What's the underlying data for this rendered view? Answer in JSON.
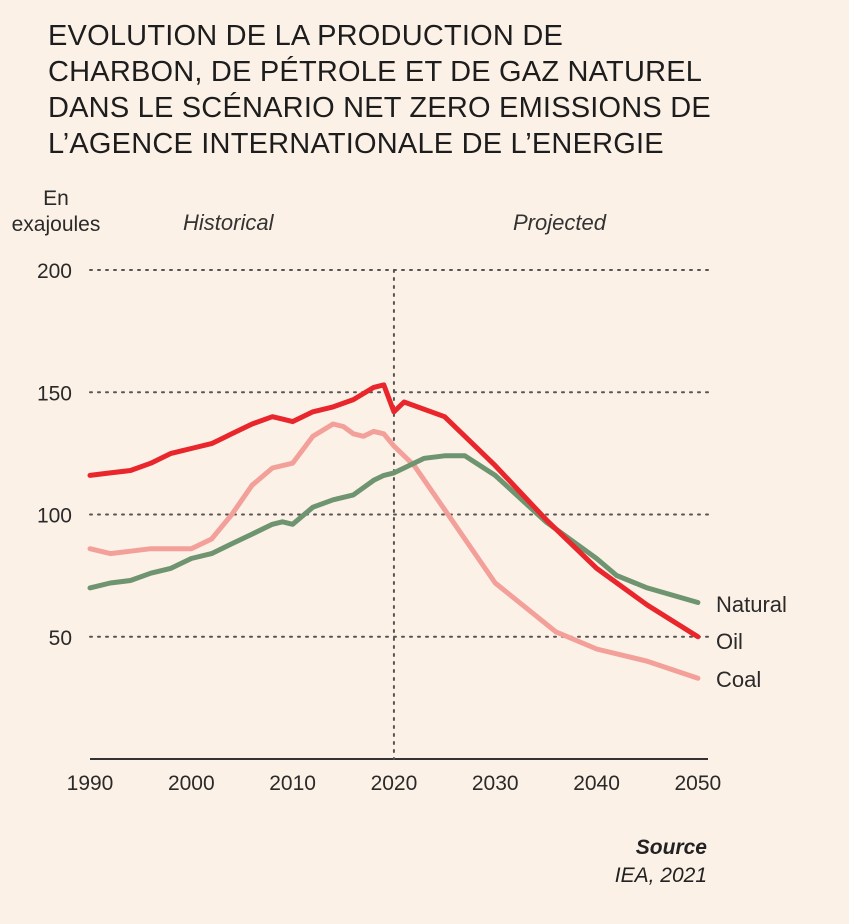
{
  "title_lines": [
    "EVOLUTION DE LA PRODUCTION DE",
    "CHARBON, DE PÉTROLE ET DE GAZ NATUREL",
    "DANS LE SCÉNARIO NET ZERO EMISSIONS DE",
    "L’AGENCE INTERNATIONALE DE L’ENERGIE"
  ],
  "ylabel_lines": [
    "En",
    "exajoules"
  ],
  "period_labels": {
    "historical": "Historical",
    "projected": "Projected"
  },
  "source": {
    "title": "Source",
    "text": "IEA, 2021"
  },
  "chart_data": {
    "type": "line",
    "title": "EVOLUTION DE LA PRODUCTION DE CHARBON, DE PÉTROLE ET DE GAZ NATUREL DANS LE SCÉNARIO NET ZERO EMISSIONS DE L’AGENCE INTERNATIONALE DE L’ENERGIE",
    "xlabel": "",
    "ylabel": "En exajoules",
    "xlim": [
      1990,
      2051
    ],
    "ylim": [
      0,
      200
    ],
    "xticks": [
      1990,
      2000,
      2010,
      2020,
      2030,
      2040,
      2050
    ],
    "yticks": [
      50,
      100,
      150,
      200
    ],
    "ytick_labels": [
      "50",
      "100",
      "150",
      "200"
    ],
    "xtick_labels": [
      "1990",
      "2000",
      "2010",
      "2020",
      "2030",
      "2040",
      "2050"
    ],
    "grid": "dotted horizontal",
    "divider_year": 2020,
    "series": [
      {
        "name": "Oil",
        "color": "#e8262b",
        "x": [
          1990,
          1992,
          1994,
          1996,
          1998,
          1999,
          2000,
          2002,
          2003,
          2004,
          2006,
          2008,
          2009,
          2010,
          2012,
          2014,
          2016,
          2018,
          2019,
          2020,
          2021,
          2025,
          2030,
          2035,
          2040,
          2045,
          2050
        ],
        "values": [
          116,
          117,
          118,
          121,
          125,
          126,
          127,
          129,
          131,
          133,
          137,
          140,
          139,
          138,
          142,
          144,
          147,
          152,
          153,
          142,
          146,
          140,
          120,
          98,
          78,
          63,
          50
        ]
      },
      {
        "name": "Natural",
        "color": "#6f9470",
        "x": [
          1990,
          1992,
          1994,
          1996,
          1998,
          2000,
          2002,
          2004,
          2006,
          2008,
          2009,
          2010,
          2012,
          2014,
          2016,
          2018,
          2019,
          2020,
          2021,
          2023,
          2025,
          2027,
          2030,
          2035,
          2040,
          2042,
          2045,
          2050
        ],
        "values": [
          70,
          72,
          73,
          76,
          78,
          82,
          84,
          88,
          92,
          96,
          97,
          96,
          103,
          106,
          108,
          114,
          116,
          117,
          119,
          123,
          124,
          124,
          116,
          97,
          82,
          75,
          70,
          64
        ]
      },
      {
        "name": "Coal",
        "color": "#f4a09a",
        "x": [
          1990,
          1992,
          1994,
          1996,
          1998,
          2000,
          2002,
          2004,
          2006,
          2008,
          2010,
          2012,
          2014,
          2015,
          2016,
          2017,
          2018,
          2019,
          2020,
          2022,
          2025,
          2030,
          2033,
          2036,
          2040,
          2045,
          2050
        ],
        "values": [
          86,
          84,
          85,
          86,
          86,
          86,
          90,
          100,
          112,
          119,
          121,
          132,
          137,
          136,
          133,
          132,
          134,
          133,
          128,
          120,
          102,
          72,
          62,
          52,
          45,
          40,
          33
        ]
      }
    ]
  }
}
